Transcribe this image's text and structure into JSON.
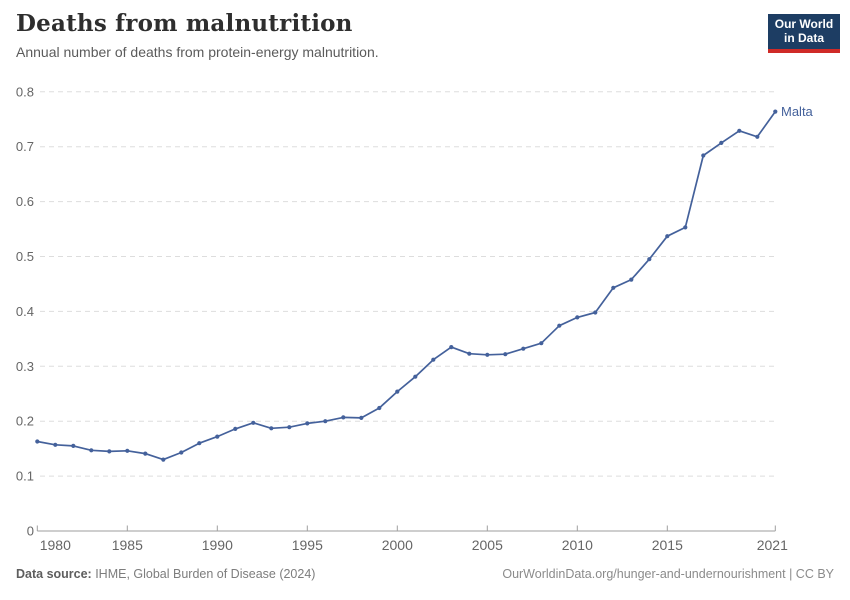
{
  "header": {
    "title": "Deaths from malnutrition",
    "subtitle": "Annual number of deaths from protein-energy malnutrition.",
    "logo": {
      "line1": "Our World",
      "line2": "in Data"
    }
  },
  "footer": {
    "datasource_label": "Data source:",
    "datasource_value": " IHME, Global Burden of Disease (2024)",
    "link": "OurWorldinData.org/hunger-and-undernourishment | CC BY"
  },
  "colors": {
    "line": "#44619b",
    "point": "#44619b",
    "entity_label": "#44619b",
    "gridline": "#dddddd",
    "axis": "#9e9e9e",
    "tick_label": "#666666",
    "logo_bg": "#1d3d63",
    "logo_stripe": "#cf2a27",
    "title": "#2e2e2e",
    "subtitle": "#5b5b5b"
  },
  "chart_data": {
    "type": "line",
    "title": "Deaths from malnutrition",
    "subtitle": "Annual number of deaths from protein-energy malnutrition.",
    "xlabel": "",
    "ylabel": "",
    "xlim": [
      1980,
      2021
    ],
    "ylim": [
      0,
      0.8
    ],
    "grid": "horizontal-dashed",
    "legend_position": "end-of-line-label",
    "xticks": [
      1980,
      1985,
      1990,
      1995,
      2000,
      2005,
      2010,
      2015,
      2021
    ],
    "yticks": [
      0,
      0.1,
      0.2,
      0.3,
      0.4,
      0.5,
      0.6,
      0.7,
      0.8
    ],
    "ytick_labels": [
      "0",
      "0.1",
      "0.2",
      "0.3",
      "0.4",
      "0.5",
      "0.6",
      "0.7",
      "0.8"
    ],
    "series": [
      {
        "name": "Malta",
        "color": "#44619b",
        "x": [
          1980,
          1981,
          1982,
          1983,
          1984,
          1985,
          1986,
          1987,
          1988,
          1989,
          1990,
          1991,
          1992,
          1993,
          1994,
          1995,
          1996,
          1997,
          1998,
          1999,
          2000,
          2001,
          2002,
          2003,
          2004,
          2005,
          2006,
          2007,
          2008,
          2009,
          2010,
          2011,
          2012,
          2013,
          2014,
          2015,
          2016,
          2017,
          2018,
          2019,
          2020,
          2021
        ],
        "values": [
          0.163,
          0.157,
          0.155,
          0.147,
          0.145,
          0.146,
          0.141,
          0.13,
          0.143,
          0.16,
          0.172,
          0.186,
          0.197,
          0.187,
          0.189,
          0.196,
          0.2,
          0.207,
          0.206,
          0.224,
          0.254,
          0.281,
          0.312,
          0.335,
          0.323,
          0.321,
          0.322,
          0.332,
          0.342,
          0.374,
          0.389,
          0.398,
          0.443,
          0.458,
          0.495,
          0.537,
          0.553,
          0.684,
          0.707,
          0.729,
          0.718,
          0.764
        ]
      }
    ]
  }
}
